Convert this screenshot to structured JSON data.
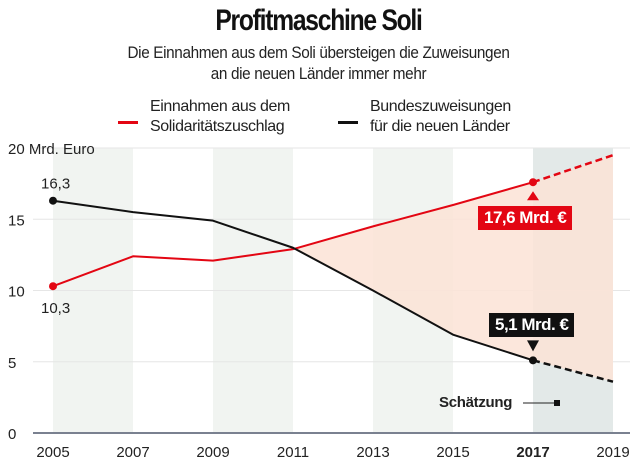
{
  "header": {
    "title": "Profitmaschine Soli",
    "subtitle_line1": "Die Einnahmen aus dem Soli übersteigen die Zuweisungen",
    "subtitle_line2": "an die neuen Länder immer mehr"
  },
  "legend": [
    {
      "line1": "Einnahmen aus dem",
      "line2": "Solidaritätszuschlag",
      "color": "#e30613"
    },
    {
      "line1": "Bundeszuweisungen",
      "line2": "für die neuen Länder",
      "color": "#111111"
    }
  ],
  "annotations": {
    "y_unit_label": "20 Mrd. Euro",
    "start_black": "16,3",
    "start_red": "10,3",
    "callout_red": "17,6 Mrd. €",
    "callout_black": "5,1 Mrd. €",
    "estimate_label": "Schätzung"
  },
  "colors": {
    "red": "#e30613",
    "black": "#111111",
    "gap_fill": "#fbe3d6",
    "shade": "#f1f4f1",
    "estimate_shade": "#e3e9e8",
    "axis": "#7a8190"
  },
  "chart_data": {
    "type": "line",
    "title": "Profitmaschine Soli",
    "subtitle": "Die Einnahmen aus dem Soli übersteigen die Zuweisungen an die neuen Länder immer mehr",
    "xlabel": "",
    "ylabel": "Mrd. Euro",
    "x": [
      2005,
      2007,
      2009,
      2011,
      2013,
      2015,
      2017,
      2019
    ],
    "x_tick_labels": [
      "2005",
      "2007",
      "2009",
      "2011",
      "2013",
      "2015",
      "2017",
      "2019"
    ],
    "highlight_x": "2017",
    "y_ticks": [
      0,
      5,
      10,
      15,
      20
    ],
    "y_tick_labels": [
      "0",
      "5",
      "10",
      "15",
      "20 Mrd. Euro"
    ],
    "ylim": [
      0,
      20
    ],
    "grid": "horizontal",
    "estimate_from": 2017,
    "series": [
      {
        "name": "Einnahmen aus dem Solidaritätszuschlag",
        "color": "#e30613",
        "values": [
          10.3,
          12.4,
          12.1,
          12.9,
          14.5,
          16.0,
          17.6,
          19.5
        ]
      },
      {
        "name": "Bundeszuweisungen für die neuen Länder",
        "color": "#111111",
        "values": [
          16.3,
          15.5,
          14.9,
          13.0,
          10.0,
          6.9,
          5.1,
          3.6
        ]
      }
    ],
    "data_labels": [
      {
        "series": 1,
        "x": 2005,
        "text": "16,3"
      },
      {
        "series": 0,
        "x": 2005,
        "text": "10,3"
      },
      {
        "series": 0,
        "x": 2017,
        "text": "17,6 Mrd. €"
      },
      {
        "series": 1,
        "x": 2017,
        "text": "5,1 Mrd. €"
      }
    ],
    "legend_position": "top"
  }
}
